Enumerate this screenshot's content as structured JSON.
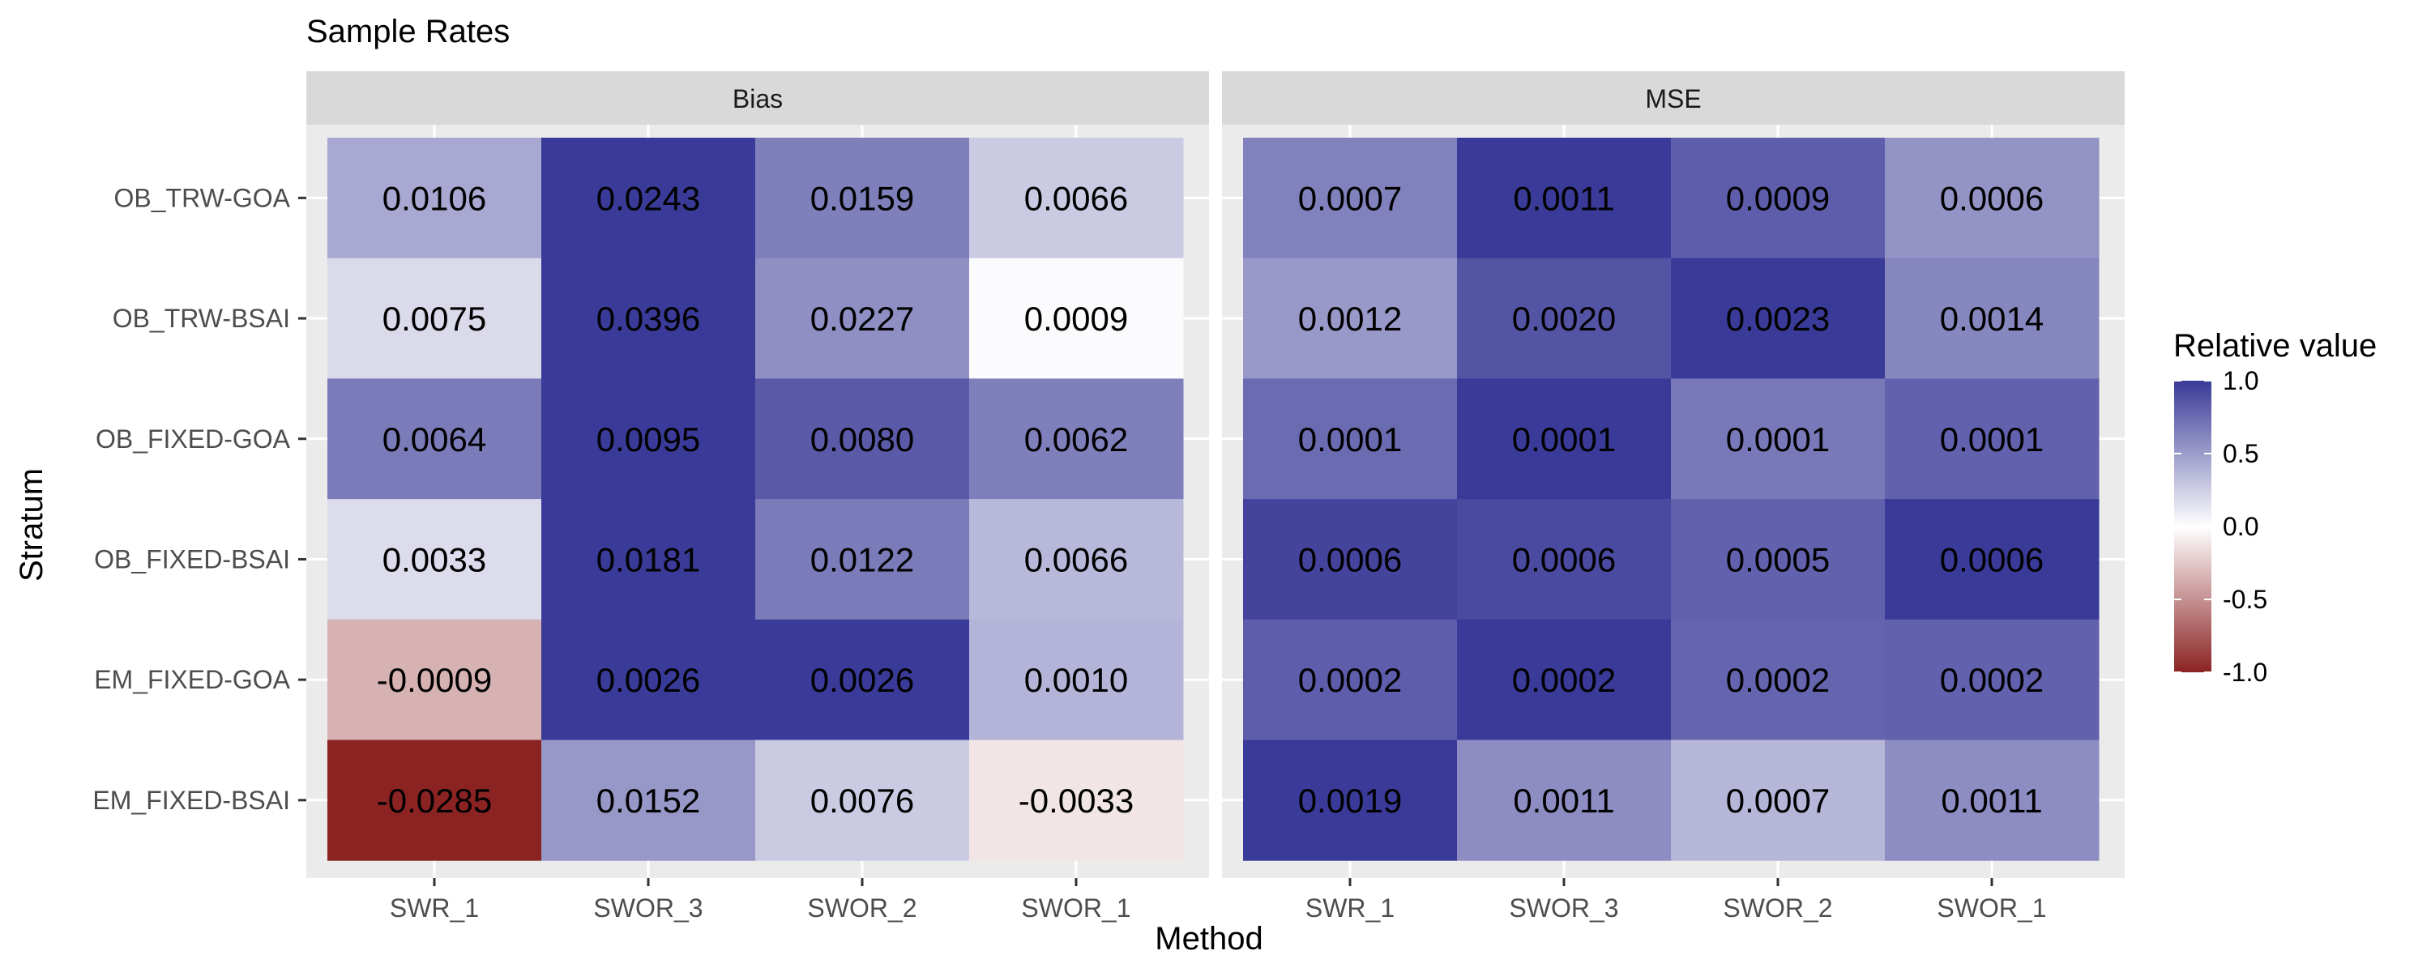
{
  "chart_data": {
    "type": "heatmap",
    "title": "Sample Rates",
    "xlabel": "Method",
    "ylabel": "Stratum",
    "x_categories": [
      "SWR_1",
      "SWOR_3",
      "SWOR_2",
      "SWOR_1"
    ],
    "y_categories": [
      "OB_TRW-GOA",
      "OB_TRW-BSAI",
      "OB_FIXED-GOA",
      "OB_FIXED-BSAI",
      "EM_FIXED-GOA",
      "EM_FIXED-BSAI"
    ],
    "legend": {
      "title": "Relative value",
      "ticks": [
        "1.0",
        "0.5",
        "0.0",
        "-0.5",
        "-1.0"
      ],
      "range": [
        -1,
        1
      ],
      "colors": {
        "low": "#8b2323",
        "mid": "#ffffff",
        "high": "#3a3a98"
      },
      "placement": "right"
    },
    "panels": [
      {
        "name": "Bias",
        "labels": [
          [
            "0.0106",
            "0.0243",
            "0.0159",
            "0.0066"
          ],
          [
            "0.0075",
            "0.0396",
            "0.0227",
            "0.0009"
          ],
          [
            "0.0064",
            "0.0095",
            "0.0080",
            "0.0062"
          ],
          [
            "0.0033",
            "0.0181",
            "0.0122",
            "0.0066"
          ],
          [
            "-0.0009",
            "0.0026",
            "0.0026",
            "0.0010"
          ],
          [
            "-0.0285",
            "0.0152",
            "0.0076",
            "-0.0033"
          ]
        ],
        "relative": [
          [
            0.44,
            1.0,
            0.65,
            0.27
          ],
          [
            0.19,
            1.0,
            0.57,
            0.02
          ],
          [
            0.67,
            1.0,
            0.84,
            0.65
          ],
          [
            0.18,
            1.0,
            0.67,
            0.36
          ],
          [
            -0.35,
            1.0,
            1.0,
            0.38
          ],
          [
            -1.0,
            0.53,
            0.27,
            -0.12
          ]
        ]
      },
      {
        "name": "MSE",
        "labels": [
          [
            "0.0007",
            "0.0011",
            "0.0009",
            "0.0006"
          ],
          [
            "0.0012",
            "0.0020",
            "0.0023",
            "0.0014"
          ],
          [
            "0.0001",
            "0.0001",
            "0.0001",
            "0.0001"
          ],
          [
            "0.0006",
            "0.0006",
            "0.0005",
            "0.0006"
          ],
          [
            "0.0002",
            "0.0002",
            "0.0002",
            "0.0002"
          ],
          [
            "0.0019",
            "0.0011",
            "0.0007",
            "0.0011"
          ]
        ],
        "relative": [
          [
            0.64,
            1.0,
            0.82,
            0.55
          ],
          [
            0.52,
            0.87,
            1.0,
            0.61
          ],
          [
            0.75,
            1.0,
            0.68,
            0.8
          ],
          [
            0.95,
            0.92,
            0.8,
            1.0
          ],
          [
            0.82,
            1.0,
            0.78,
            0.8
          ],
          [
            1.0,
            0.58,
            0.37,
            0.58
          ]
        ]
      }
    ]
  }
}
